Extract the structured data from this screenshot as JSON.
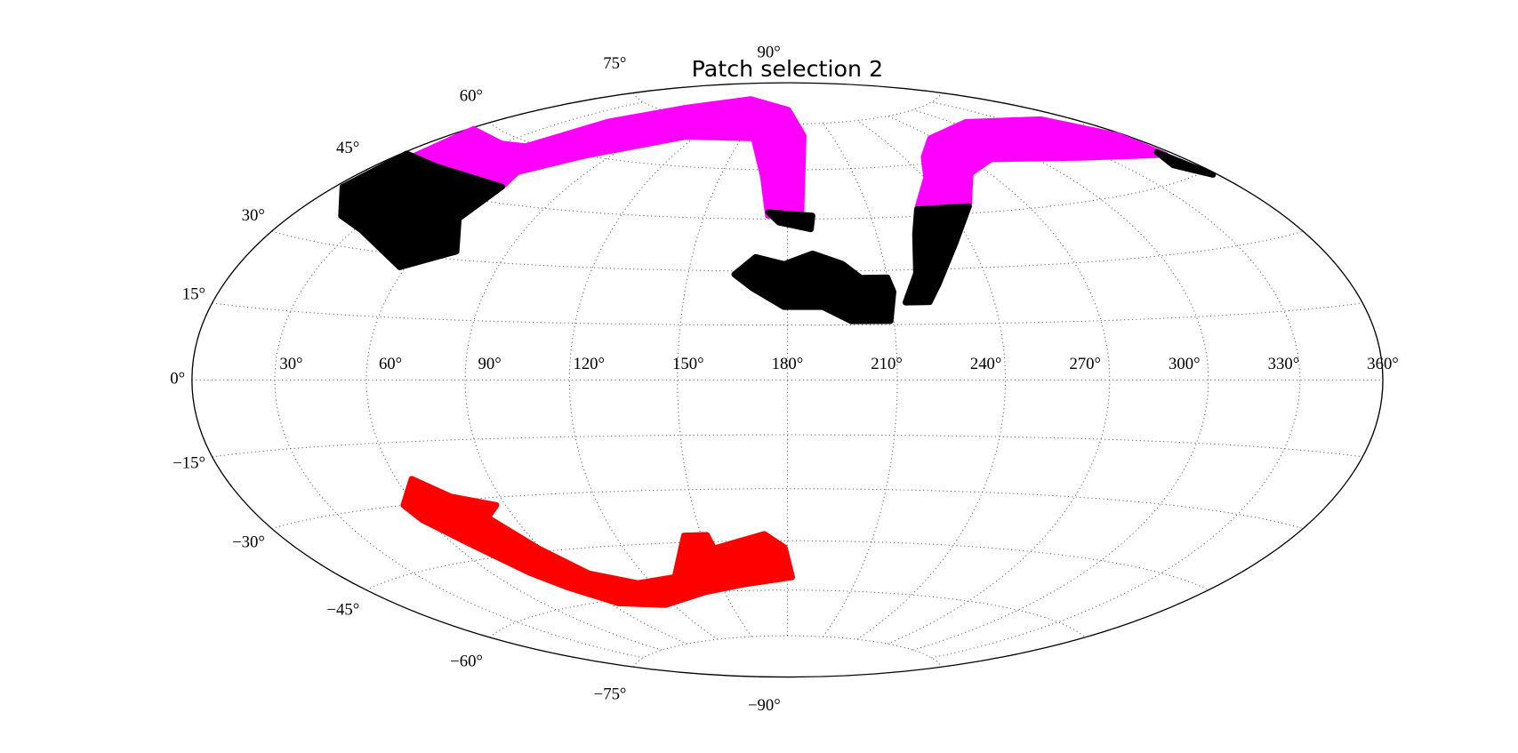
{
  "chart_data": {
    "type": "area",
    "projection": "hammer",
    "title": "Patch selection 2",
    "xlim": [
      0,
      360
    ],
    "ylim": [
      -90,
      90
    ],
    "grid": true,
    "xticks": [
      {
        "value": 30,
        "label": "30°"
      },
      {
        "value": 60,
        "label": "60°"
      },
      {
        "value": 90,
        "label": "90°"
      },
      {
        "value": 120,
        "label": "120°"
      },
      {
        "value": 150,
        "label": "150°"
      },
      {
        "value": 180,
        "label": "180°"
      },
      {
        "value": 210,
        "label": "210°"
      },
      {
        "value": 240,
        "label": "240°"
      },
      {
        "value": 270,
        "label": "270°"
      },
      {
        "value": 300,
        "label": "300°"
      },
      {
        "value": 330,
        "label": "330°"
      },
      {
        "value": 360,
        "label": "360°"
      }
    ],
    "yticks": [
      {
        "value": -90,
        "label": "−90°"
      },
      {
        "value": -75,
        "label": "−75°"
      },
      {
        "value": -60,
        "label": "−60°"
      },
      {
        "value": -45,
        "label": "−45°"
      },
      {
        "value": -30,
        "label": "−30°"
      },
      {
        "value": -15,
        "label": "−15°"
      },
      {
        "value": 0,
        "label": "0°"
      },
      {
        "value": 15,
        "label": "15°"
      },
      {
        "value": 30,
        "label": "30°"
      },
      {
        "value": 45,
        "label": "45°"
      },
      {
        "value": 60,
        "label": "60°"
      },
      {
        "value": 75,
        "label": "75°"
      },
      {
        "value": 90,
        "label": "90°"
      }
    ],
    "series": [
      {
        "color": "#ff00ff",
        "x": [
          7,
          2,
          30,
          43,
          51,
          72,
          116,
          181,
          191,
          185,
          173,
          169,
          158,
          114,
          78,
          61,
          64,
          24
        ],
        "values": [
          50,
          58,
          58,
          59,
          69,
          77,
          83,
          80,
          71,
          46,
          46,
          58,
          70,
          69,
          60,
          53,
          49,
          50
        ]
      },
      {
        "color": "#ff00ff",
        "x": [
          268,
          308,
          347,
          357,
          356,
          319,
          280,
          262,
          248,
          228,
          241,
          250
        ],
        "values": [
          67,
          69,
          64,
          56,
          50,
          55,
          59,
          56,
          47,
          47,
          56,
          62
        ]
      },
      {
        "color": "#000000",
        "x": [
          3,
          2,
          24,
          64,
          63,
          73,
          58,
          33,
          19
        ],
        "values": [
          41,
          50,
          50,
          49,
          40,
          32,
          27,
          34,
          36
        ]
      },
      {
        "color": "#000000",
        "x": [
          173,
          189,
          188,
          177
        ],
        "values": [
          47,
          46,
          42,
          44
        ]
      },
      {
        "color": "#000000",
        "x": [
          164,
          170,
          179,
          188,
          197,
          202,
          210,
          211,
          209,
          198,
          190,
          179,
          170
        ],
        "values": [
          29,
          34,
          32,
          35,
          32,
          28,
          28,
          24,
          16,
          16,
          20,
          20,
          25
        ]
      },
      {
        "color": "#000000",
        "x": [
          228,
          248,
          235,
          225,
          221,
          214,
          219,
          223
        ],
        "values": [
          47,
          47,
          37,
          26,
          21,
          21,
          29,
          40
        ]
      },
      {
        "color": "#000000",
        "x": [
          355,
          358,
          350
        ],
        "values": [
          51,
          44,
          48
        ]
      },
      {
        "color": "#ff0000",
        "x": [
          65,
          74,
          87,
          81,
          89,
          98,
          114,
          132,
          144,
          152,
          153,
          172,
          179,
          182,
          161,
          141,
          116,
          94,
          82,
          75,
          66,
          58,
          56
        ],
        "values": [
          -24,
          -29,
          -32,
          -35,
          -44,
          -52,
          -56,
          -55,
          -43,
          -43,
          -47,
          -43,
          -47,
          -56,
          -58,
          -60,
          -63,
          -61,
          -55,
          -50,
          -41,
          -34,
          -30
        ]
      }
    ]
  }
}
